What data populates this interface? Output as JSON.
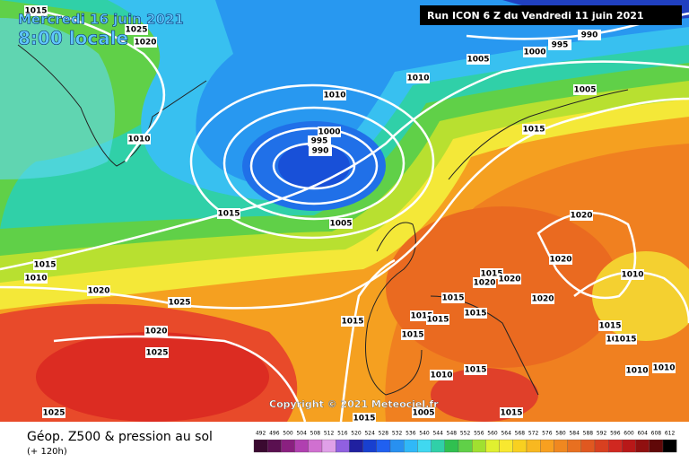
{
  "header": {
    "date": "Mercredi 16 juin 2021",
    "time": "8:00 locale",
    "run": "Run ICON 6 Z du Vendredi 11 juin 2021"
  },
  "copyright": "Copyright © 2021 Meteociel.fr",
  "footer": {
    "title": "Géop. Z500 & pression au sol",
    "lead": "(+ 120h)"
  },
  "scale": [
    492,
    496,
    500,
    504,
    508,
    512,
    516,
    520,
    524,
    528,
    532,
    536,
    540,
    544,
    548,
    552,
    556,
    560,
    564,
    568,
    572,
    576,
    580,
    584,
    588,
    592,
    596,
    600,
    604,
    608,
    612
  ],
  "isobar_labels": [
    1015,
    1025,
    1020,
    1010,
    1010,
    1010,
    1005,
    1000,
    995,
    990,
    1005,
    1000,
    995,
    990,
    1015,
    1005,
    1015,
    1020,
    1020,
    1015,
    1010,
    1020,
    1025,
    1020,
    1025,
    1015,
    1015,
    1015,
    1015,
    1015,
    1020,
    1020,
    1015,
    1015,
    1020,
    1010,
    1015,
    1010,
    1015,
    1010,
    1010,
    1010,
    1015,
    1005,
    1015,
    1015,
    1025
  ]
}
